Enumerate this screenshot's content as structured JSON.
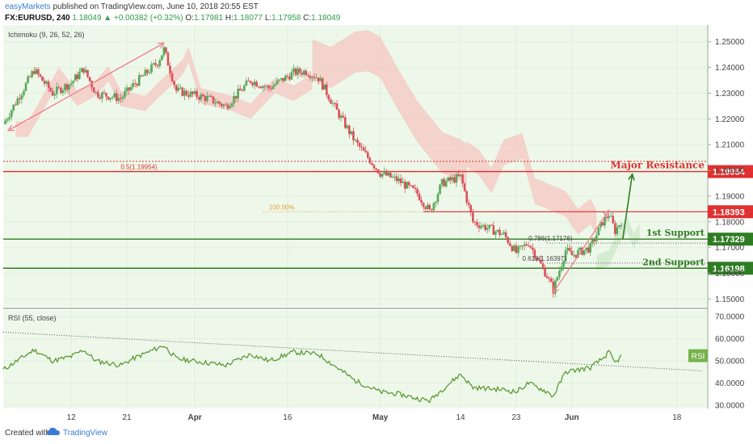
{
  "header": {
    "publisher": "easyMarkets",
    "published_text": "published on TradingView.com, June 10, 2018 20:55 EST",
    "symbol": "FX:EURUSD, 240",
    "last": "1.18049",
    "change_arrow": "▲",
    "change": "+0.00382 (+0.32%)",
    "o_label": "O:",
    "o_value": "1.17981",
    "h_label": "H:",
    "h_value": "1.18077",
    "l_label": "L:",
    "l_value": "1.17958",
    "c_label": "C:",
    "c_value": "1.18049"
  },
  "footer": {
    "created_with": "Created with",
    "brand": "TradingView"
  },
  "colors": {
    "background": "#eef8ea",
    "up_candle": "#57a85a",
    "down_candle": "#d9505a",
    "cloud": "#f4c9c4",
    "cloud_green": "#cfe8cc",
    "resistance": "#e03030",
    "support": "#2f7d22",
    "rsi_line": "#5d9a36",
    "fib_100": "#e0a040",
    "arrow_pink": "#f08090"
  },
  "chart_data": [
    {
      "type": "candlestick",
      "indicator_label": "Ichimoku (9, 26, 52, 26)",
      "ylim": [
        1.147,
        1.2565
      ],
      "price_ticks": [
        "1.25000",
        "1.24000",
        "1.23000",
        "1.22000",
        "1.21000",
        "1.20000",
        "1.19000",
        "1.18000",
        "1.17000",
        "1.16000",
        "1.15000"
      ],
      "price_tick_values": [
        1.25,
        1.24,
        1.23,
        1.22,
        1.21,
        1.2,
        1.19,
        1.18,
        1.17,
        1.16,
        1.15
      ],
      "x_ticks": [
        "12",
        "21",
        "Apr",
        "16",
        "May",
        "14",
        "23",
        "Jun",
        "18"
      ],
      "x_tick_dates": [
        "2018-03-12",
        "2018-03-21",
        "2018-04-01",
        "2018-04-16",
        "2018-05-01",
        "2018-05-14",
        "2018-05-23",
        "2018-06-01",
        "2018-06-18"
      ],
      "date_range": [
        "2018-03-01",
        "2018-06-23"
      ],
      "price_path": [
        {
          "date": "2018-03-01",
          "price": 1.218
        },
        {
          "date": "2018-03-06",
          "price": 1.239
        },
        {
          "date": "2018-03-09",
          "price": 1.23
        },
        {
          "date": "2018-03-12",
          "price": 1.234
        },
        {
          "date": "2018-03-14",
          "price": 1.2395
        },
        {
          "date": "2018-03-16",
          "price": 1.23
        },
        {
          "date": "2018-03-20",
          "price": 1.228
        },
        {
          "date": "2018-03-22",
          "price": 1.233
        },
        {
          "date": "2018-03-26",
          "price": 1.242
        },
        {
          "date": "2018-03-27",
          "price": 1.247
        },
        {
          "date": "2018-03-29",
          "price": 1.231
        },
        {
          "date": "2018-04-03",
          "price": 1.228
        },
        {
          "date": "2018-04-06",
          "price": 1.225
        },
        {
          "date": "2018-04-10",
          "price": 1.235
        },
        {
          "date": "2018-04-13",
          "price": 1.232
        },
        {
          "date": "2018-04-17",
          "price": 1.238
        },
        {
          "date": "2018-04-19",
          "price": 1.2385
        },
        {
          "date": "2018-04-21",
          "price": 1.236
        },
        {
          "date": "2018-04-24",
          "price": 1.223
        },
        {
          "date": "2018-04-27",
          "price": 1.211
        },
        {
          "date": "2018-05-01",
          "price": 1.199
        },
        {
          "date": "2018-05-04",
          "price": 1.196
        },
        {
          "date": "2018-05-07",
          "price": 1.191
        },
        {
          "date": "2018-05-09",
          "price": 1.184
        },
        {
          "date": "2018-05-11",
          "price": 1.195
        },
        {
          "date": "2018-05-14",
          "price": 1.1975
        },
        {
          "date": "2018-05-16",
          "price": 1.18
        },
        {
          "date": "2018-05-18",
          "price": 1.178
        },
        {
          "date": "2018-05-21",
          "price": 1.175
        },
        {
          "date": "2018-05-23",
          "price": 1.168
        },
        {
          "date": "2018-05-25",
          "price": 1.172
        },
        {
          "date": "2018-05-28",
          "price": 1.159
        },
        {
          "date": "2018-05-29",
          "price": 1.1535
        },
        {
          "date": "2018-05-31",
          "price": 1.169
        },
        {
          "date": "2018-06-01",
          "price": 1.167
        },
        {
          "date": "2018-06-04",
          "price": 1.17
        },
        {
          "date": "2018-06-06",
          "price": 1.18
        },
        {
          "date": "2018-06-07",
          "price": 1.183
        },
        {
          "date": "2018-06-08",
          "price": 1.1765
        },
        {
          "date": "2018-06-09",
          "price": 1.1805
        }
      ],
      "levels": [
        {
          "name": "Major Resistance",
          "label": "Major Resistance",
          "value": 1.19954,
          "value_label": "1.19954",
          "style": "resistance"
        },
        {
          "name": "1st Support",
          "label": "1st Support",
          "value": 1.17329,
          "value_label": "1.17329",
          "style": "support"
        },
        {
          "name": "2nd Support",
          "label": "2nd Support",
          "value": 1.16198,
          "value_label": "1.16198",
          "style": "support"
        },
        {
          "name": "100.00%",
          "label": "100.00%",
          "value": 1.18393,
          "value_label": "1.18393",
          "style": "resistance-dotted"
        }
      ],
      "fib_labels": [
        {
          "label": "0.5(1.19954)",
          "date": "2018-03-20",
          "value": 1.19954
        },
        {
          "label": "100.00%",
          "date": "2018-04-13",
          "value": 1.18393
        },
        {
          "label": "0.786(1.17176)",
          "date": "2018-05-25",
          "value": 1.17176
        },
        {
          "label": "0.618(1.16397)",
          "date": "2018-05-24",
          "value": 1.16397
        }
      ]
    },
    {
      "type": "line",
      "indicator_label": "RSI (55, close)",
      "badge": "RSI",
      "ylim": [
        28.5,
        73.0
      ],
      "y_ticks": [
        "70.0000",
        "60.0000",
        "50.0000",
        "40.0000",
        "30.0000"
      ],
      "y_tick_values": [
        70,
        60,
        50,
        40,
        30
      ],
      "series": [
        {
          "values": [
            {
              "date": "2018-03-01",
              "rsi": 46
            },
            {
              "date": "2018-03-06",
              "rsi": 55
            },
            {
              "date": "2018-03-09",
              "rsi": 50
            },
            {
              "date": "2018-03-12",
              "rsi": 52
            },
            {
              "date": "2018-03-14",
              "rsi": 55
            },
            {
              "date": "2018-03-16",
              "rsi": 50
            },
            {
              "date": "2018-03-20",
              "rsi": 48
            },
            {
              "date": "2018-03-22",
              "rsi": 51
            },
            {
              "date": "2018-03-27",
              "rsi": 57
            },
            {
              "date": "2018-03-29",
              "rsi": 51
            },
            {
              "date": "2018-04-06",
              "rsi": 48
            },
            {
              "date": "2018-04-10",
              "rsi": 53
            },
            {
              "date": "2018-04-13",
              "rsi": 50
            },
            {
              "date": "2018-04-17",
              "rsi": 54
            },
            {
              "date": "2018-04-21",
              "rsi": 53
            },
            {
              "date": "2018-04-24",
              "rsi": 47
            },
            {
              "date": "2018-04-27",
              "rsi": 41
            },
            {
              "date": "2018-05-01",
              "rsi": 36
            },
            {
              "date": "2018-05-04",
              "rsi": 35
            },
            {
              "date": "2018-05-07",
              "rsi": 33
            },
            {
              "date": "2018-05-09",
              "rsi": 32
            },
            {
              "date": "2018-05-11",
              "rsi": 37
            },
            {
              "date": "2018-05-14",
              "rsi": 44
            },
            {
              "date": "2018-05-16",
              "rsi": 38
            },
            {
              "date": "2018-05-21",
              "rsi": 37
            },
            {
              "date": "2018-05-23",
              "rsi": 36
            },
            {
              "date": "2018-05-25",
              "rsi": 40
            },
            {
              "date": "2018-05-28",
              "rsi": 36
            },
            {
              "date": "2018-05-29",
              "rsi": 34
            },
            {
              "date": "2018-05-31",
              "rsi": 45
            },
            {
              "date": "2018-06-04",
              "rsi": 47
            },
            {
              "date": "2018-06-06",
              "rsi": 51
            },
            {
              "date": "2018-06-07",
              "rsi": 54
            },
            {
              "date": "2018-06-08",
              "rsi": 49
            },
            {
              "date": "2018-06-09",
              "rsi": 52
            }
          ]
        }
      ]
    }
  ]
}
